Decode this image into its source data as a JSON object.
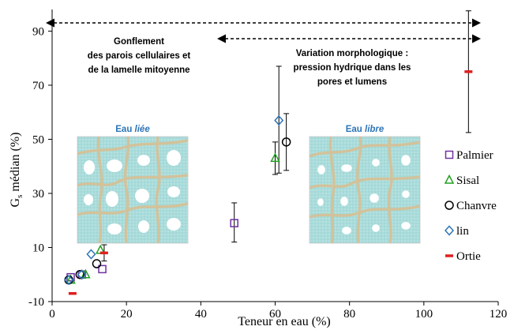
{
  "chart_data": {
    "type": "scatter",
    "xlabel": "Teneur en eau (%)",
    "ylabel_main": "G",
    "ylabel_sub": "s",
    "ylabel_rest": "  médian (%)",
    "xlim": [
      0,
      120
    ],
    "ylim": [
      -10,
      98
    ],
    "x_ticks": [
      "0",
      "20",
      "40",
      "60",
      "80",
      "100",
      "120"
    ],
    "x_tick_values": [
      0,
      20,
      40,
      60,
      80,
      100,
      120
    ],
    "y_ticks": [
      "-10",
      "10",
      "30",
      "50",
      "70",
      "90"
    ],
    "y_tick_values": [
      -10,
      10,
      30,
      50,
      70,
      90
    ],
    "grid": false,
    "legend_position": "right",
    "series": [
      {
        "name": "Palmier",
        "marker": "square",
        "color": "#7030a0",
        "points": [
          {
            "x": 5,
            "y": -1
          },
          {
            "x": 8,
            "y": 0
          },
          {
            "x": 13.5,
            "y": 2
          },
          {
            "x": 49,
            "y": 19,
            "err_low": 12,
            "err_high": 26.5
          }
        ]
      },
      {
        "name": "Sisal",
        "marker": "triangle",
        "color": "#22a022",
        "points": [
          {
            "x": 5,
            "y": -2
          },
          {
            "x": 9,
            "y": 0
          },
          {
            "x": 13,
            "y": 9
          },
          {
            "x": 60,
            "y": 43,
            "err_low": 37,
            "err_high": 49
          }
        ]
      },
      {
        "name": "Chanvre",
        "marker": "circle",
        "color": "#000000",
        "points": [
          {
            "x": 4.5,
            "y": -2
          },
          {
            "x": 7.5,
            "y": 0
          },
          {
            "x": 12,
            "y": 4
          },
          {
            "x": 63,
            "y": 49,
            "err_low": 38.5,
            "err_high": 59.5
          }
        ]
      },
      {
        "name": "lin",
        "marker": "diamond",
        "color": "#2e75b6",
        "points": [
          {
            "x": 4.5,
            "y": -2
          },
          {
            "x": 8,
            "y": 0
          },
          {
            "x": 10.5,
            "y": 7.5
          },
          {
            "x": 61,
            "y": 57,
            "err_low": 37.5,
            "err_high": 77
          }
        ]
      },
      {
        "name": "Ortie",
        "marker": "dash",
        "color": "#e02020",
        "points": [
          {
            "x": 5.5,
            "y": -7
          },
          {
            "x": 14,
            "y": 8,
            "err_low": 5,
            "err_high": 11
          },
          {
            "x": 112,
            "y": 75,
            "err_low": 52.5,
            "err_high": 97.5
          }
        ]
      }
    ],
    "annotations": {
      "left_text": [
        "Gonflement",
        "des parois cellulaires et",
        "de la lamelle mitoyenne"
      ],
      "right_text": [
        "Variation morphologique :",
        "pression hydrique dans les",
        "pores et lumens"
      ],
      "inset_left_prefix": "Eau ",
      "inset_left_emph": "liée",
      "inset_right_prefix": "Eau ",
      "inset_right_emph": "libre"
    },
    "colors": {
      "axis": "#000000",
      "inset_title": "#2e75b6",
      "cell_fill": "#a9dcdb",
      "cell_wall": "#d2c29b",
      "lumen": "#ffffff"
    }
  }
}
